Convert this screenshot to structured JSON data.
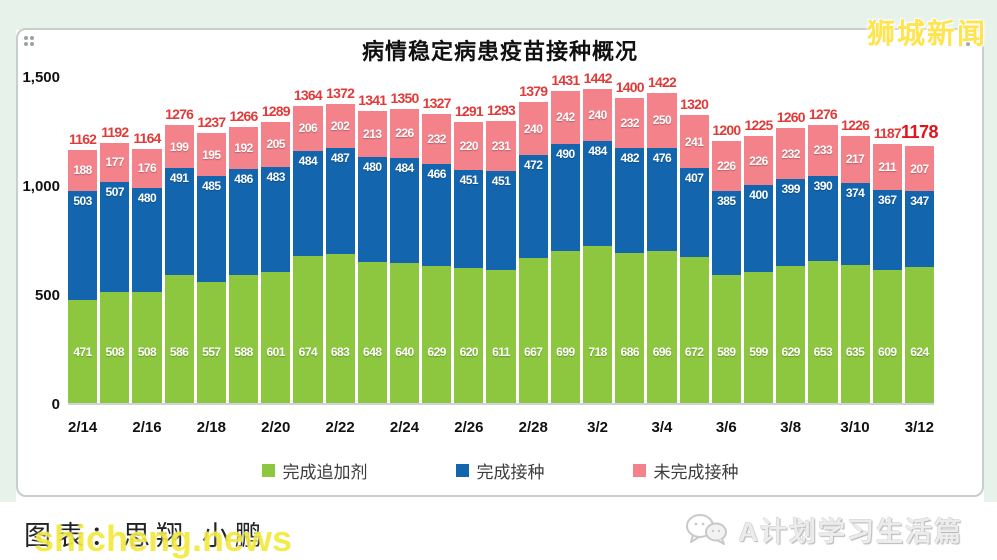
{
  "page": {
    "bg_mint": "#e6f2ea"
  },
  "header": {
    "title": "病情稳定病患疫苗接种概况",
    "site_logo": "狮城新闻"
  },
  "footer": {
    "credit": "图表：思翔 小鹏",
    "watermark": "shicheng.news",
    "account": "A计划学习生活篇"
  },
  "chart_data": {
    "type": "bar",
    "stacked": true,
    "title": "病情稳定病患疫苗接种概况",
    "x_tick_labels": [
      "2/14",
      "2/16",
      "2/18",
      "2/20",
      "2/22",
      "2/24",
      "2/26",
      "2/28",
      "3/2",
      "3/4",
      "3/6",
      "3/8",
      "3/10",
      "3/12"
    ],
    "x_tick_every": 2,
    "ylim": [
      0,
      1500
    ],
    "yticks": [
      {
        "label": "0",
        "value": 0
      },
      {
        "label": "500",
        "value": 500
      },
      {
        "label": "1,000",
        "value": 1000
      },
      {
        "label": "1,500",
        "value": 1500
      }
    ],
    "grid": false,
    "legend_position": "bottom",
    "series": [
      {
        "name": "完成追加剂",
        "color": "#8dc63f",
        "values": [
          471,
          508,
          508,
          586,
          557,
          588,
          601,
          674,
          683,
          648,
          640,
          629,
          620,
          611,
          667,
          699,
          718,
          686,
          696,
          672,
          589,
          599,
          629,
          653,
          635,
          609,
          624
        ]
      },
      {
        "name": "完成接种",
        "color": "#1366ae",
        "values": [
          503,
          507,
          480,
          491,
          485,
          486,
          483,
          484,
          487,
          480,
          484,
          466,
          451,
          451,
          472,
          490,
          484,
          482,
          476,
          407,
          385,
          400,
          399,
          390,
          374,
          367,
          347
        ]
      },
      {
        "name": "未完成接种",
        "color": "#f3828a",
        "values": [
          188,
          177,
          176,
          199,
          195,
          192,
          205,
          206,
          202,
          213,
          226,
          232,
          220,
          231,
          240,
          242,
          240,
          232,
          250,
          241,
          226,
          226,
          232,
          233,
          217,
          211,
          207
        ]
      }
    ],
    "totals": [
      1162,
      1192,
      1164,
      1276,
      1237,
      1266,
      1289,
      1364,
      1372,
      1341,
      1350,
      1327,
      1291,
      1293,
      1379,
      1431,
      1442,
      1400,
      1422,
      1320,
      1200,
      1225,
      1260,
      1276,
      1226,
      1187,
      1178
    ],
    "total_label_color": "#e03a3a",
    "last_total_highlight": true
  }
}
